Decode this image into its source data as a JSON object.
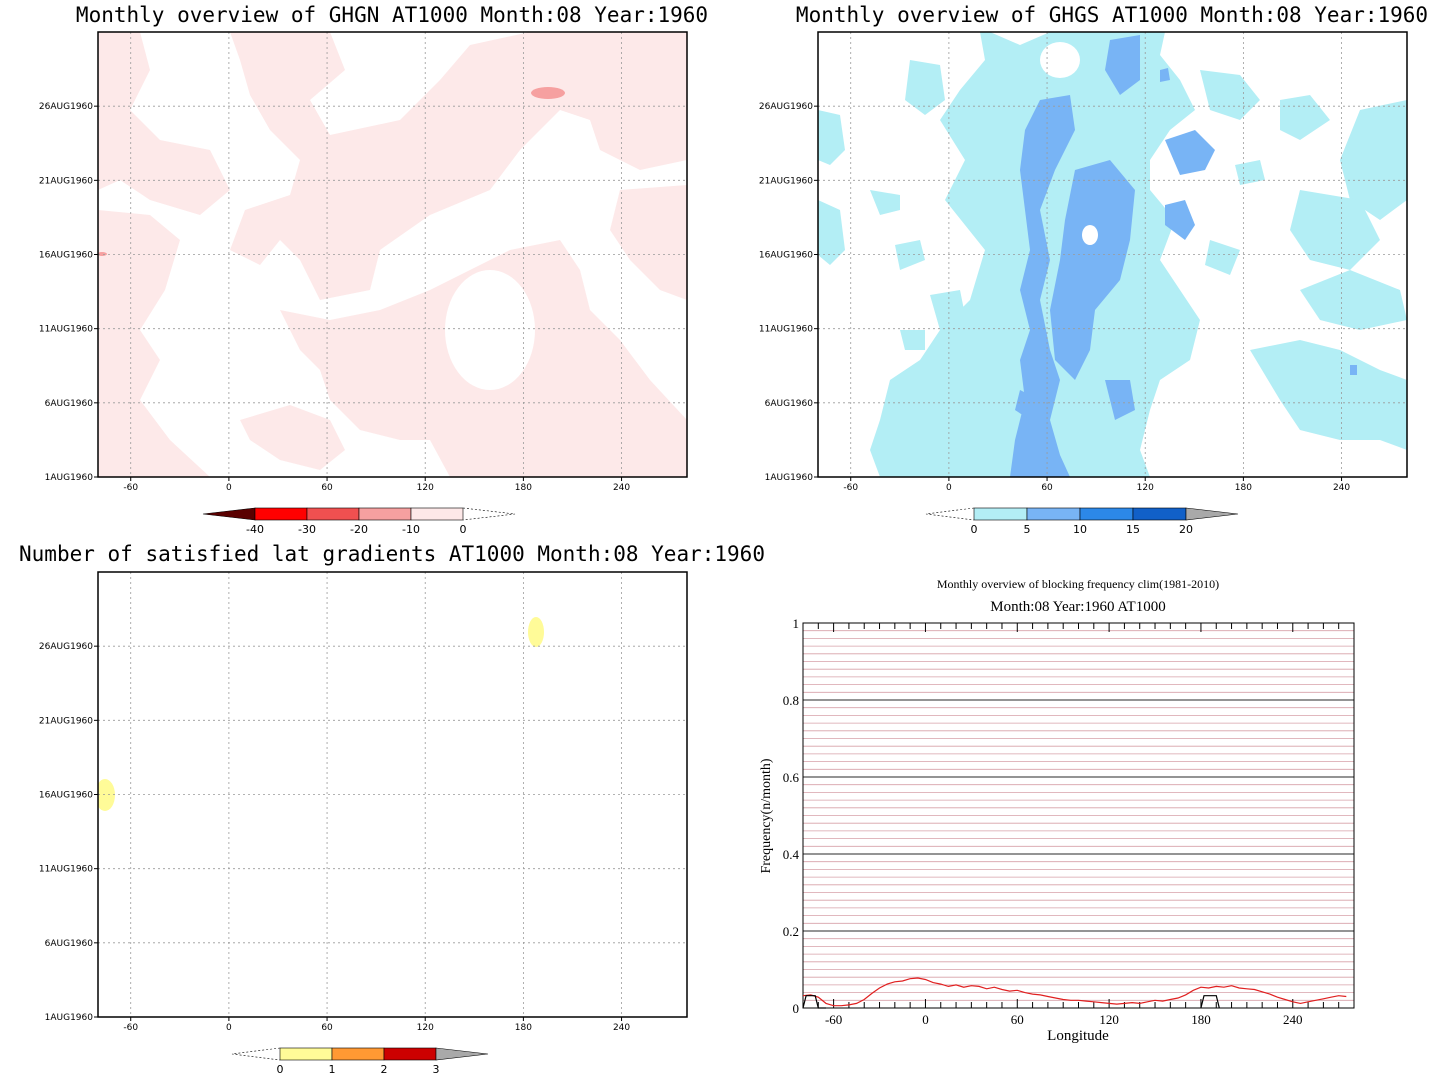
{
  "panels": [
    {
      "id": "ghgn",
      "title": "Monthly overview of GHGN AT1000 Month:08 Year:1960",
      "x_ticks": [
        "-60",
        "0",
        "60",
        "120",
        "180",
        "240"
      ],
      "y_ticks": [
        "1AUG1960",
        "6AUG1960",
        "11AUG1960",
        "16AUG1960",
        "21AUG1960",
        "26AUG1960"
      ],
      "colorbar": {
        "labels": [
          "-40",
          "-30",
          "-20",
          "-10",
          "0"
        ],
        "colors": [
          "#5a0000",
          "#ff0000",
          "#f05050",
          "#f6a0a0",
          "#fde8e8"
        ]
      },
      "fill_colors": {
        "light": "#fde9e9",
        "medium": "#f6a0a0"
      }
    },
    {
      "id": "ghgs",
      "title": "Monthly overview of GHGS AT1000 Month:08 Year:1960",
      "x_ticks": [
        "-60",
        "0",
        "60",
        "120",
        "180",
        "240"
      ],
      "y_ticks": [
        "1AUG1960",
        "6AUG1960",
        "11AUG1960",
        "16AUG1960",
        "21AUG1960",
        "26AUG1960"
      ],
      "colorbar": {
        "labels": [
          "0",
          "5",
          "10",
          "15",
          "20"
        ],
        "colors": [
          "#b3eef5",
          "#78b4f5",
          "#2c88e8",
          "#1160c8",
          "#a9a9a9"
        ]
      },
      "fill_colors": {
        "light": "#b3eef5",
        "medium": "#78b4f5"
      }
    },
    {
      "id": "latgrad",
      "title": "Number of satisfied lat gradients AT1000 Month:08 Year:1960",
      "x_ticks": [
        "-60",
        "0",
        "60",
        "120",
        "180",
        "240"
      ],
      "y_ticks": [
        "1AUG1960",
        "6AUG1960",
        "11AUG1960",
        "16AUG1960",
        "21AUG1960",
        "26AUG1960"
      ],
      "colorbar": {
        "labels": [
          "0",
          "1",
          "2",
          "3"
        ],
        "colors": [
          "#fffb98",
          "#ff9933",
          "#cc0000",
          "#a9a9a9"
        ]
      },
      "fill_colors": {
        "light": "#fffb98"
      }
    }
  ],
  "chart_data": [
    {
      "type": "heatmap",
      "title": "Monthly overview of GHGN AT1000 Month:08 Year:1960",
      "x_ticks": [
        -60,
        0,
        60,
        120,
        180,
        240
      ],
      "xlim": [
        -80,
        280
      ],
      "y_ticks": [
        "1AUG1960",
        "6AUG1960",
        "11AUG1960",
        "16AUG1960",
        "21AUG1960",
        "26AUG1960"
      ],
      "levels": [
        -40,
        -30,
        -20,
        -10,
        0
      ],
      "grid": true,
      "notes_regions": [
        {
          "level_range": [
            -10,
            0
          ],
          "shade": "light-pink",
          "extent": "widespread patches"
        },
        {
          "level_range": [
            -20,
            -10
          ],
          "shade": "pink",
          "x": 193,
          "y": "27AUG1960"
        }
      ]
    },
    {
      "type": "heatmap",
      "title": "Monthly overview of GHGS AT1000 Month:08 Year:1960",
      "x_ticks": [
        -60,
        0,
        60,
        120,
        180,
        240
      ],
      "xlim": [
        -80,
        280
      ],
      "y_ticks": [
        "1AUG1960",
        "6AUG1960",
        "11AUG1960",
        "16AUG1960",
        "21AUG1960",
        "26AUG1960"
      ],
      "levels": [
        0,
        5,
        10,
        15,
        20
      ],
      "grid": true
    },
    {
      "type": "heatmap",
      "title": "Number of satisfied lat gradients AT1000 Month:08 Year:1960",
      "x_ticks": [
        -60,
        0,
        60,
        120,
        180,
        240
      ],
      "xlim": [
        -80,
        280
      ],
      "y_ticks": [
        "1AUG1960",
        "6AUG1960",
        "11AUG1960",
        "16AUG1960",
        "21AUG1960",
        "26AUG1960"
      ],
      "levels": [
        0,
        1,
        2,
        3
      ],
      "grid": true,
      "spots": [
        {
          "x": 188,
          "y": "28AUG1960",
          "value_range": [
            0,
            1
          ]
        },
        {
          "x": -76,
          "y": "16AUG1960",
          "value_range": [
            0,
            1
          ]
        }
      ]
    },
    {
      "type": "line",
      "title": "Monthly overview of blocking frequency clim(1981-2010)",
      "subtitle": "Month:08 Year:1960  AT1000",
      "xlabel": "Longitude",
      "ylabel": "Frequency(n/month)",
      "xlim": [
        -80,
        280
      ],
      "ylim": [
        0,
        1
      ],
      "x_ticks": [
        -60,
        0,
        60,
        120,
        180,
        240
      ],
      "y_ticks": [
        0,
        0.2,
        0.4,
        0.6,
        0.8,
        1
      ],
      "series": [
        {
          "color": "#e02020",
          "x": [
            -80,
            -75,
            -70,
            -65,
            -60,
            -55,
            -50,
            -45,
            -40,
            -35,
            -30,
            -25,
            -20,
            -15,
            -10,
            -5,
            0,
            5,
            10,
            15,
            20,
            25,
            30,
            35,
            40,
            45,
            50,
            55,
            60,
            65,
            70,
            75,
            80,
            85,
            90,
            95,
            100,
            105,
            110,
            115,
            120,
            125,
            130,
            135,
            140,
            145,
            150,
            155,
            160,
            165,
            170,
            175,
            180,
            185,
            190,
            195,
            200,
            205,
            210,
            215,
            220,
            225,
            230,
            235,
            240,
            245,
            250,
            255,
            260,
            265,
            270,
            275
          ],
          "y": [
            0.032,
            0.034,
            0.028,
            0.012,
            0.006,
            0.006,
            0.008,
            0.012,
            0.022,
            0.038,
            0.052,
            0.062,
            0.068,
            0.07,
            0.076,
            0.078,
            0.074,
            0.066,
            0.062,
            0.056,
            0.06,
            0.054,
            0.058,
            0.056,
            0.05,
            0.054,
            0.048,
            0.044,
            0.046,
            0.04,
            0.036,
            0.034,
            0.03,
            0.026,
            0.022,
            0.02,
            0.02,
            0.018,
            0.016,
            0.014,
            0.012,
            0.01,
            0.012,
            0.014,
            0.012,
            0.016,
            0.02,
            0.018,
            0.022,
            0.026,
            0.034,
            0.046,
            0.054,
            0.052,
            0.056,
            0.054,
            0.058,
            0.052,
            0.05,
            0.048,
            0.042,
            0.036,
            0.028,
            0.022,
            0.016,
            0.012,
            0.016,
            0.02,
            0.024,
            0.028,
            0.032,
            0.03
          ]
        },
        {
          "color": "#000000",
          "x": [
            -80,
            -78,
            -75,
            -72,
            -70,
            -68,
            -65,
            180,
            182,
            185,
            188,
            190,
            192
          ],
          "y": [
            0.0,
            0.032,
            0.032,
            0.032,
            0.0,
            0.0,
            0.0,
            0.0,
            0.032,
            0.032,
            0.032,
            0.032,
            0.0
          ]
        }
      ],
      "grid": true
    }
  ]
}
